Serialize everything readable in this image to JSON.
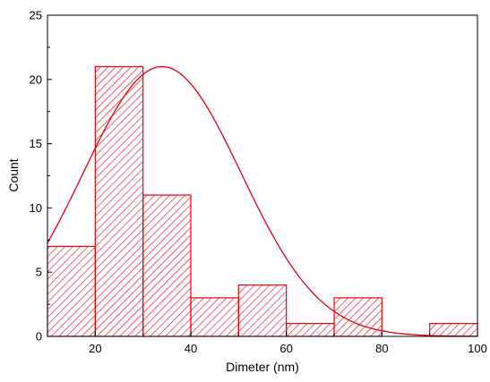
{
  "chart_data": {
    "type": "bar",
    "subtype": "histogram",
    "xlabel": "Dimeter (nm)",
    "ylabel": "Count",
    "xlim": [
      10,
      100
    ],
    "ylim": [
      0,
      25
    ],
    "xticks": [
      "20",
      "40",
      "60",
      "80",
      "100"
    ],
    "yticks": [
      "0",
      "5",
      "10",
      "15",
      "20",
      "25"
    ],
    "bins": [
      {
        "start": 10,
        "end": 20,
        "value": 7
      },
      {
        "start": 20,
        "end": 30,
        "value": 21
      },
      {
        "start": 30,
        "end": 40,
        "value": 11
      },
      {
        "start": 40,
        "end": 50,
        "value": 3
      },
      {
        "start": 50,
        "end": 60,
        "value": 4
      },
      {
        "start": 60,
        "end": 70,
        "value": 1
      },
      {
        "start": 70,
        "end": 80,
        "value": 3
      },
      {
        "start": 80,
        "end": 90,
        "value": 0
      },
      {
        "start": 90,
        "end": 100,
        "value": 1
      }
    ],
    "fit_curve": {
      "type": "gaussian",
      "center": 34,
      "amplitude": 21,
      "sigma": 16.5
    },
    "colors": {
      "bar": "#e8000b",
      "curve": "#e8000b",
      "axis": "#000000"
    },
    "grid": false,
    "legend": "none"
  }
}
